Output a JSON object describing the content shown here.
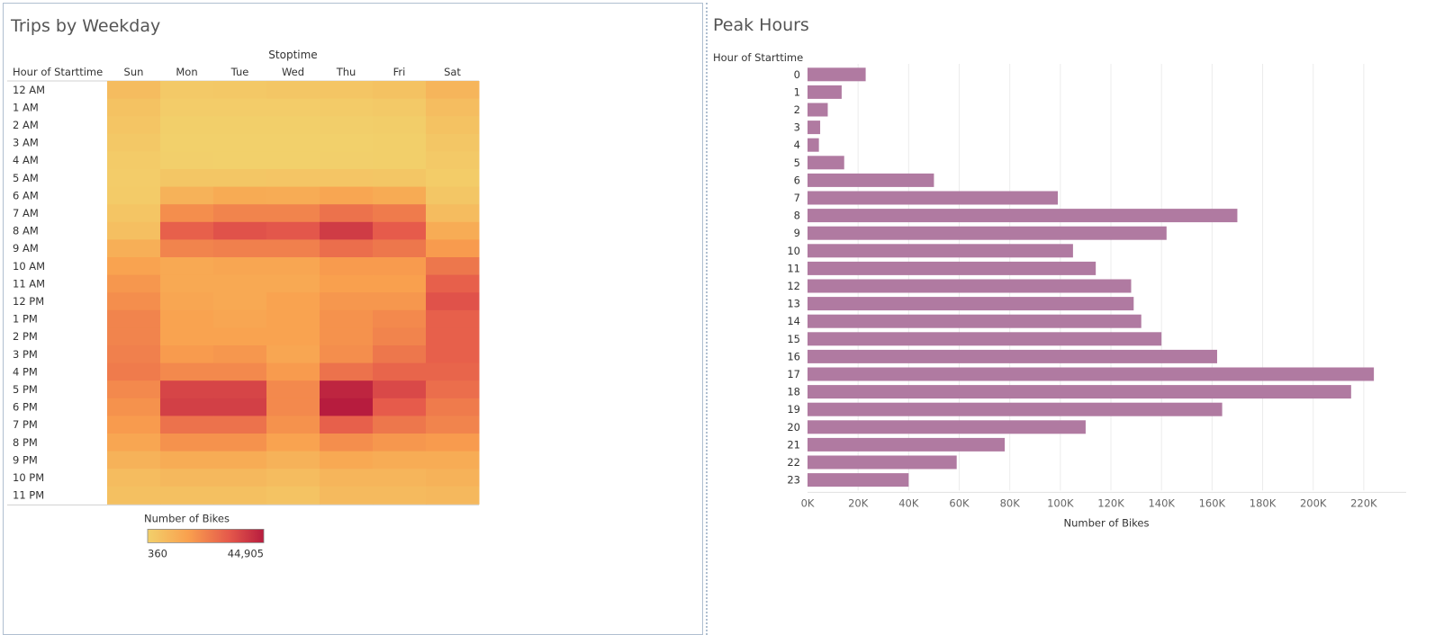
{
  "heatmap": {
    "title": "Trips by Weekday",
    "column_axis_title": "Stoptime",
    "row_axis_title": "Hour of Starttime",
    "colors": {
      "low": "#f2d06b",
      "high": "#b71c3e"
    },
    "legend": {
      "title": "Number of Bikes",
      "min_label": "360",
      "max_label": "44,905"
    }
  },
  "bars": {
    "title": "Peak Hours",
    "row_axis_title": "Hour of Starttime",
    "x_axis_title": "Number of Bikes",
    "bar_color": "#b07aa1",
    "tick_labels": [
      "0K",
      "20K",
      "40K",
      "60K",
      "80K",
      "100K",
      "120K",
      "140K",
      "160K",
      "180K",
      "200K",
      "220K"
    ]
  },
  "chart_data": [
    {
      "type": "heatmap",
      "title": "Trips by Weekday",
      "xlabel": "Stoptime",
      "ylabel": "Hour of Starttime",
      "x": [
        "Sun",
        "Mon",
        "Tue",
        "Wed",
        "Thu",
        "Fri",
        "Sat"
      ],
      "y": [
        "12 AM",
        "1 AM",
        "2 AM",
        "3 AM",
        "4 AM",
        "5 AM",
        "6 AM",
        "7 AM",
        "8 AM",
        "9 AM",
        "10 AM",
        "11 AM",
        "12 PM",
        "1 PM",
        "2 PM",
        "3 PM",
        "4 PM",
        "5 PM",
        "6 PM",
        "7 PM",
        "8 PM",
        "9 PM",
        "10 PM",
        "11 PM"
      ],
      "values": [
        [
          7000,
          2500,
          3000,
          3500,
          4000,
          5000,
          9000
        ],
        [
          5000,
          1500,
          1500,
          1500,
          2000,
          2500,
          6500
        ],
        [
          4000,
          800,
          800,
          800,
          1000,
          1200,
          5000
        ],
        [
          3000,
          500,
          400,
          400,
          500,
          700,
          3500
        ],
        [
          2000,
          600,
          500,
          500,
          600,
          700,
          2500
        ],
        [
          1500,
          3500,
          3500,
          3800,
          3800,
          3500,
          1800
        ],
        [
          2000,
          10000,
          12500,
          12000,
          14000,
          12500,
          3500
        ],
        [
          4000,
          20000,
          22000,
          22000,
          26000,
          24000,
          7000
        ],
        [
          6000,
          30000,
          33000,
          32000,
          38000,
          31000,
          12000
        ],
        [
          11000,
          22000,
          23000,
          23000,
          27000,
          25000,
          17000
        ],
        [
          15000,
          13000,
          14000,
          14000,
          17000,
          17000,
          25000
        ],
        [
          18000,
          13000,
          13000,
          13000,
          16000,
          16000,
          30000
        ],
        [
          20000,
          14000,
          13000,
          15000,
          18000,
          18000,
          33000
        ],
        [
          22000,
          15000,
          14000,
          15000,
          19000,
          21000,
          30000
        ],
        [
          22000,
          15000,
          15000,
          15000,
          19000,
          22000,
          30000
        ],
        [
          23000,
          17000,
          18000,
          14000,
          20000,
          25000,
          30000
        ],
        [
          24000,
          21000,
          21000,
          17000,
          26000,
          29000,
          29000
        ],
        [
          21000,
          36000,
          36000,
          21000,
          43000,
          35000,
          27000
        ],
        [
          19000,
          37000,
          37000,
          21000,
          44905,
          31000,
          24000
        ],
        [
          17000,
          26000,
          26000,
          19000,
          30000,
          25000,
          22000
        ],
        [
          14000,
          19000,
          19000,
          15000,
          20000,
          18000,
          17000
        ],
        [
          10000,
          12000,
          12000,
          10000,
          13000,
          12000,
          12000
        ],
        [
          7000,
          8000,
          8000,
          7000,
          9000,
          9000,
          10000
        ],
        [
          5500,
          5500,
          5500,
          4500,
          7500,
          7500,
          8000
        ]
      ],
      "range": [
        360,
        44905
      ]
    },
    {
      "type": "bar",
      "orientation": "horizontal",
      "title": "Peak Hours",
      "ylabel": "Hour of Starttime",
      "xlabel": "Number of Bikes",
      "categories": [
        "0",
        "1",
        "2",
        "3",
        "4",
        "5",
        "6",
        "7",
        "8",
        "9",
        "10",
        "11",
        "12",
        "13",
        "14",
        "15",
        "16",
        "17",
        "18",
        "19",
        "20",
        "21",
        "22",
        "23"
      ],
      "values": [
        23000,
        13500,
        8000,
        5000,
        4500,
        14500,
        50000,
        99000,
        170000,
        142000,
        105000,
        114000,
        128000,
        129000,
        132000,
        140000,
        162000,
        224000,
        215000,
        164000,
        110000,
        78000,
        59000,
        40000
      ],
      "xlim": [
        0,
        235000
      ],
      "grid": true
    }
  ]
}
